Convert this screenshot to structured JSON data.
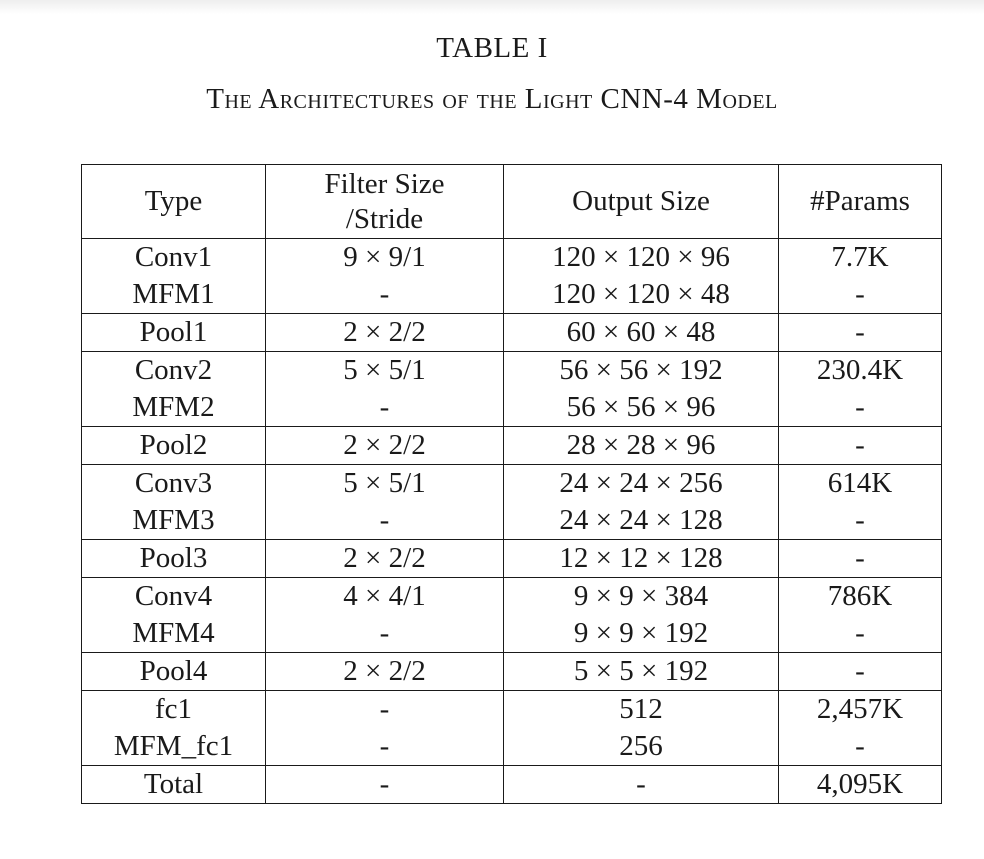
{
  "caption": {
    "label": "TABLE I",
    "title": "The Architectures of the Light CNN-4 Model"
  },
  "table": {
    "headers": {
      "type": "Type",
      "filter_line1": "Filter Size",
      "filter_line2": "/Stride",
      "output": "Output Size",
      "params": "#Params"
    },
    "rows": [
      [
        "Conv1",
        "9 × 9/1",
        "120 × 120 × 96",
        "7.7K"
      ],
      [
        "MFM1",
        "-",
        "120 × 120 × 48",
        "-"
      ],
      [
        "Pool1",
        "2 × 2/2",
        "60 × 60 × 48",
        "-"
      ],
      [
        "Conv2",
        "5 × 5/1",
        "56 × 56 × 192",
        "230.4K"
      ],
      [
        "MFM2",
        "-",
        "56 × 56 × 96",
        "-"
      ],
      [
        "Pool2",
        "2 × 2/2",
        "28 × 28 × 96",
        "-"
      ],
      [
        "Conv3",
        "5 × 5/1",
        "24 × 24 × 256",
        "614K"
      ],
      [
        "MFM3",
        "-",
        "24 × 24 × 128",
        "-"
      ],
      [
        "Pool3",
        "2 × 2/2",
        "12 × 12 × 128",
        "-"
      ],
      [
        "Conv4",
        "4 × 4/1",
        "9 × 9 × 384",
        "786K"
      ],
      [
        "MFM4",
        "-",
        "9 × 9 × 192",
        "-"
      ],
      [
        "Pool4",
        "2 × 2/2",
        "5 × 5 × 192",
        "-"
      ],
      [
        "fc1",
        "-",
        "512",
        "2,457K"
      ],
      [
        "MFM_fc1",
        "-",
        "256",
        "-"
      ],
      [
        "Total",
        "-",
        "-",
        "4,095K"
      ]
    ]
  }
}
